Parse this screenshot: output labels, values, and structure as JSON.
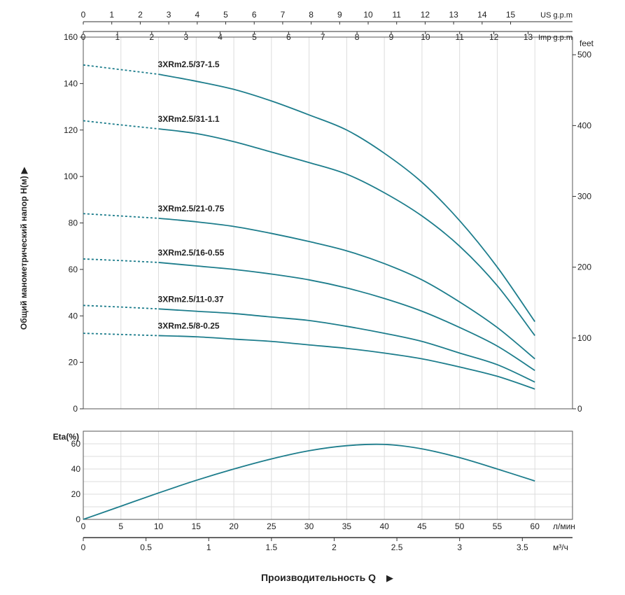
{
  "chart_data": [
    {
      "type": "line",
      "title": "",
      "xlabel": "Производительность Q",
      "ylabel": "Общий манометрический напор H(м)",
      "xlim": [
        0,
        65
      ],
      "ylim": [
        0,
        160
      ],
      "y_ticks": [
        0,
        20,
        40,
        60,
        80,
        100,
        120,
        140,
        160
      ],
      "right_axis": {
        "label": "feet",
        "ticks": [
          0,
          100,
          200,
          300,
          400,
          500
        ]
      },
      "top_axes": [
        {
          "label": "US g.p.m",
          "ticks": [
            0,
            1,
            2,
            3,
            4,
            5,
            6,
            7,
            8,
            9,
            10,
            11,
            12,
            13,
            14,
            15
          ],
          "factor": 3.785
        },
        {
          "label": "Imp g.p.m",
          "ticks": [
            0,
            1,
            2,
            3,
            4,
            5,
            6,
            7,
            8,
            9,
            10,
            11,
            12,
            13
          ],
          "factor": 4.546
        }
      ],
      "grid": "vertical",
      "x": [
        0,
        5,
        10,
        15,
        20,
        25,
        30,
        35,
        40,
        45,
        50,
        55,
        60
      ],
      "dashed_until": 10,
      "series": [
        {
          "name": "3XRm2.5/37-1.5",
          "values": [
            148,
            146,
            144,
            141,
            137.5,
            132.5,
            126.5,
            120,
            110,
            97.5,
            81,
            61,
            37.5
          ]
        },
        {
          "name": "3XRm2.5/31-1.1",
          "values": [
            124,
            122.2,
            120.5,
            118.5,
            115,
            110.5,
            106,
            101,
            93,
            83,
            70,
            53,
            31.5
          ]
        },
        {
          "name": "3XRm2.5/21-0.75",
          "values": [
            84,
            83,
            82,
            80.5,
            78.5,
            75.5,
            72,
            68,
            62.5,
            55.5,
            46,
            35,
            21.5
          ]
        },
        {
          "name": "3XRm2.5/16-0.55",
          "values": [
            64.5,
            63.8,
            63,
            61.5,
            60,
            58,
            55.5,
            52,
            47.5,
            42,
            35,
            27,
            16.5
          ]
        },
        {
          "name": "3XRm2.5/11-0.37",
          "values": [
            44.5,
            43.8,
            43,
            42,
            41,
            39.5,
            38,
            35.5,
            32.5,
            29,
            24,
            19,
            11.5
          ]
        },
        {
          "name": "3XRm2.5/8-0.25",
          "values": [
            32.5,
            32,
            31.5,
            31,
            30,
            29,
            27.5,
            26,
            24,
            21.5,
            18,
            14,
            8.5
          ]
        }
      ],
      "color": "#1d7d8c"
    },
    {
      "type": "line",
      "ylabel": "Eta(%)",
      "xlim": [
        0,
        65
      ],
      "ylim": [
        0,
        70
      ],
      "y_ticks": [
        0,
        20,
        40,
        60
      ],
      "x_ticks": [
        0,
        5,
        10,
        15,
        20,
        25,
        30,
        35,
        40,
        45,
        50,
        55,
        60
      ],
      "x_unit": "л/мин",
      "second_x_axis": {
        "unit": "м³/ч",
        "ticks": [
          "0",
          "0.5",
          "1",
          "1.5",
          "2",
          "2.5",
          "3",
          "3.5"
        ],
        "factor": 16.667
      },
      "grid": "both",
      "x": [
        0,
        5,
        10,
        15,
        20,
        25,
        30,
        35,
        40,
        45,
        50,
        55,
        60
      ],
      "series": [
        {
          "name": "Eta",
          "values": [
            0,
            10.5,
            21,
            31,
            40,
            48,
            54.5,
            58.5,
            59.5,
            56,
            49,
            40,
            30.5
          ]
        }
      ],
      "color": "#1d7d8c"
    }
  ],
  "labels": {
    "ylabel": "Общий манометрический напор H(м)",
    "xlabel": "Производительность Q",
    "feet": "feet",
    "eta": "Eta(%)",
    "lmin": "л/мин",
    "m3h": "м³/ч",
    "us": "US g.p.m",
    "imp": "Imp g.p.m"
  }
}
